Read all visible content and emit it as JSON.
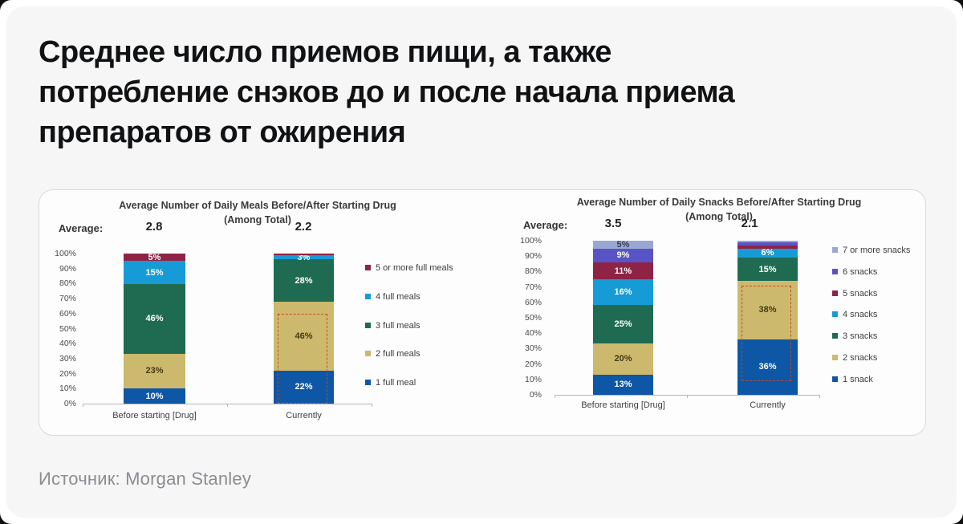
{
  "page": {
    "title_lines": [
      "Среднее число приемов пищи, а также",
      "потребление снэков до и после начала приема",
      "препаратов от ожирения"
    ],
    "source": "Источник: Morgan Stanley"
  },
  "colors": {
    "card_bg": "#f6f6f7",
    "panel_bg": "#fdfdfe",
    "highlight_dash": "#c8481d"
  },
  "chart_data": [
    {
      "type": "bar",
      "stacked": true,
      "title": "Average Number of Daily Meals Before/After Starting Drug",
      "subtitle": "(Among Total)",
      "average_label": "Average:",
      "averages": [
        "2.8",
        "2.2"
      ],
      "categories": [
        "Before starting [Drug]",
        "Currently"
      ],
      "ylabel": "",
      "xlabel": "",
      "ylim": [
        0,
        100
      ],
      "ytick_step": 10,
      "grid": false,
      "legend_position": "right",
      "series": [
        {
          "name": "1 full meal",
          "color": "#0e56a6",
          "label_color": "#ffffff",
          "values": [
            10,
            22
          ]
        },
        {
          "name": "2 full meals",
          "color": "#cdb96d",
          "label_color": "#433a12",
          "values": [
            23,
            46
          ]
        },
        {
          "name": "3 full meals",
          "color": "#1f6b52",
          "label_color": "#ffffff",
          "values": [
            46,
            28
          ]
        },
        {
          "name": "4 full meals",
          "color": "#169bd7",
          "label_color": "#ffffff",
          "values": [
            15,
            3
          ]
        },
        {
          "name": "5 or more full meals",
          "color": "#8e2345",
          "label_color": "#ffffff",
          "values": [
            5,
            1
          ]
        }
      ],
      "highlight": {
        "bar_index": 1,
        "from_pct": 0,
        "to_pct": 60,
        "color": "#c8481d"
      }
    },
    {
      "type": "bar",
      "stacked": true,
      "title": "Average Number of Daily Snacks Before/After Starting Drug",
      "subtitle": "(Among Total)",
      "average_label": "Average:",
      "averages": [
        "3.5",
        "2.1"
      ],
      "categories": [
        "Before starting [Drug]",
        "Currently"
      ],
      "ylabel": "",
      "xlabel": "",
      "ylim": [
        0,
        100
      ],
      "ytick_step": 10,
      "grid": false,
      "legend_position": "right",
      "series": [
        {
          "name": "1 snack",
          "color": "#0e56a6",
          "label_color": "#ffffff",
          "values": [
            13,
            36
          ]
        },
        {
          "name": "2 snacks",
          "color": "#cdb96d",
          "label_color": "#433a12",
          "values": [
            20,
            38
          ]
        },
        {
          "name": "3 snacks",
          "color": "#1f6b52",
          "label_color": "#ffffff",
          "values": [
            25,
            15
          ]
        },
        {
          "name": "4 snacks",
          "color": "#169bd7",
          "label_color": "#ffffff",
          "values": [
            16,
            6
          ]
        },
        {
          "name": "5 snacks",
          "color": "#8e2345",
          "label_color": "#ffffff",
          "values": [
            11,
            2
          ]
        },
        {
          "name": "6 snacks",
          "color": "#5a53c6",
          "label_color": "#ffffff",
          "values": [
            9,
            2
          ]
        },
        {
          "name": "7 or more snacks",
          "color": "#98a8d2",
          "label_color": "#3a3a55",
          "values": [
            5,
            1
          ]
        }
      ],
      "highlight": {
        "bar_index": 1,
        "from_pct": 9,
        "to_pct": 71,
        "color": "#c8481d"
      }
    }
  ]
}
